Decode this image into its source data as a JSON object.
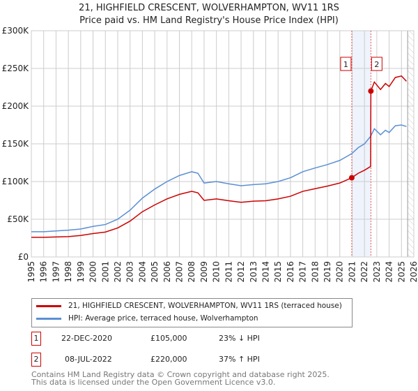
{
  "chart_data": {
    "type": "line",
    "title": "21, HIGHFIELD CRESCENT, WOLVERHAMPTON, WV11 1RS",
    "subtitle": "Price paid vs. HM Land Registry's House Price Index (HPI)",
    "xlim": [
      1995,
      2026
    ],
    "ylim": [
      0,
      300000
    ],
    "x_ticks": [
      "1995",
      "1996",
      "1997",
      "1998",
      "1999",
      "2000",
      "2001",
      "2002",
      "2003",
      "2004",
      "2005",
      "2006",
      "2007",
      "2008",
      "2009",
      "2010",
      "2011",
      "2012",
      "2013",
      "2014",
      "2015",
      "2016",
      "2017",
      "2018",
      "2019",
      "2020",
      "2021",
      "2022",
      "2023",
      "2024",
      "2025",
      "2026"
    ],
    "y_ticks": [
      {
        "v": 0,
        "label": "£0"
      },
      {
        "v": 50000,
        "label": "£50K"
      },
      {
        "v": 100000,
        "label": "£100K"
      },
      {
        "v": 150000,
        "label": "£150K"
      },
      {
        "v": 200000,
        "label": "£200K"
      },
      {
        "v": 250000,
        "label": "£250K"
      },
      {
        "v": 300000,
        "label": "£300K"
      }
    ],
    "grid": true,
    "series": [
      {
        "name": "21, HIGHFIELD CRESCENT, WOLVERHAMPTON, WV11 1RS (terraced house)",
        "color": "#cc0000",
        "x": [
          1995,
          1996,
          1997,
          1998,
          1999,
          2000,
          2001,
          2002,
          2003,
          2004,
          2005,
          2006,
          2007,
          2008,
          2008.5,
          2009,
          2010,
          2011,
          2012,
          2013,
          2014,
          2015,
          2016,
          2017,
          2018,
          2019,
          2020,
          2020.97,
          2021.5,
          2022,
          2022.5,
          2022.52,
          2022.8,
          2023.3,
          2023.7,
          2024,
          2024.5,
          2025,
          2025.4
        ],
        "y": [
          26000,
          26000,
          26500,
          27000,
          28500,
          31000,
          33000,
          38500,
          47500,
          60000,
          69000,
          77000,
          83000,
          87000,
          85000,
          75000,
          77000,
          74500,
          72500,
          74000,
          74500,
          77000,
          80500,
          87000,
          90500,
          94000,
          98000,
          105000,
          111000,
          115000,
          120000,
          220000,
          232000,
          222000,
          230000,
          226000,
          238000,
          240000,
          233000
        ]
      },
      {
        "name": "HPI: Average price, terraced house, Wolverhampton",
        "color": "#5b8fd4",
        "x": [
          1995,
          1996,
          1997,
          1998,
          1999,
          2000,
          2001,
          2002,
          2003,
          2004,
          2005,
          2006,
          2007,
          2008,
          2008.5,
          2009,
          2010,
          2011,
          2012,
          2013,
          2014,
          2015,
          2016,
          2017,
          2018,
          2019,
          2020,
          2020.97,
          2021.5,
          2022,
          2022.5,
          2022.8,
          2023.3,
          2023.7,
          2024,
          2024.5,
          2025,
          2025.4
        ],
        "y": [
          33500,
          33500,
          34500,
          35500,
          37000,
          40500,
          43000,
          50000,
          62000,
          78000,
          90000,
          100000,
          108000,
          113000,
          111000,
          98000,
          100000,
          97000,
          94500,
          96000,
          97000,
          100000,
          105000,
          113000,
          118000,
          122500,
          128000,
          137000,
          145000,
          150000,
          160000,
          170000,
          162000,
          168000,
          165000,
          174000,
          175000,
          173000
        ]
      }
    ],
    "sales": [
      {
        "label": "1",
        "x": 2020.97,
        "date": "22-DEC-2020",
        "price": 105000,
        "price_label": "£105,000",
        "hpi": "23% ↓ HPI"
      },
      {
        "label": "2",
        "x": 2022.52,
        "date": "08-JUL-2022",
        "price": 220000,
        "price_label": "£220,000",
        "hpi": "37% ↑ HPI"
      }
    ],
    "forecast_start": 2025.5,
    "legend_placement": "bottom"
  },
  "footer": {
    "line1": "Contains HM Land Registry data © Crown copyright and database right 2025.",
    "line2": "This data is licensed under the Open Government Licence v3.0."
  }
}
